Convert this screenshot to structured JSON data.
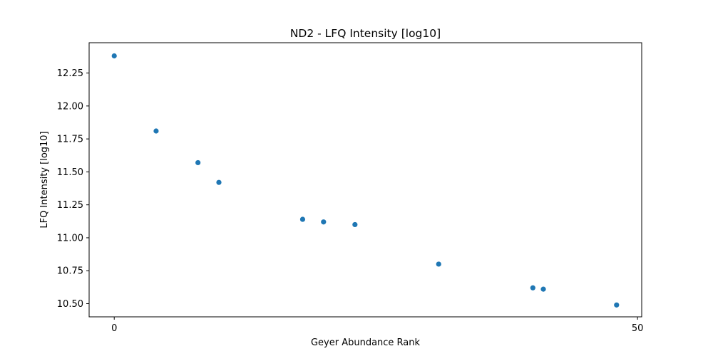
{
  "chart_data": {
    "type": "scatter",
    "title": "ND2 - LFQ Intensity [log10]",
    "xlabel": "Geyer Abundance Rank",
    "ylabel": "LFQ Intensity [log10]",
    "xlim": [
      -2.4,
      50.4
    ],
    "ylim": [
      10.4,
      12.48
    ],
    "xticks": [
      0,
      50
    ],
    "xtick_labels": [
      "0",
      "50"
    ],
    "yticks": [
      10.5,
      10.75,
      11.0,
      11.25,
      11.5,
      11.75,
      12.0,
      12.25
    ],
    "ytick_labels": [
      "10.50",
      "10.75",
      "11.00",
      "11.25",
      "11.50",
      "11.75",
      "12.00",
      "12.25"
    ],
    "grid": false,
    "marker_color": "#1f77b4",
    "series": [
      {
        "x": [
          0,
          4,
          8,
          10,
          18,
          20,
          23,
          31,
          40,
          41,
          48
        ],
        "y": [
          12.38,
          11.81,
          11.57,
          11.42,
          11.14,
          11.12,
          11.1,
          10.8,
          10.62,
          10.61,
          10.49
        ]
      }
    ]
  }
}
